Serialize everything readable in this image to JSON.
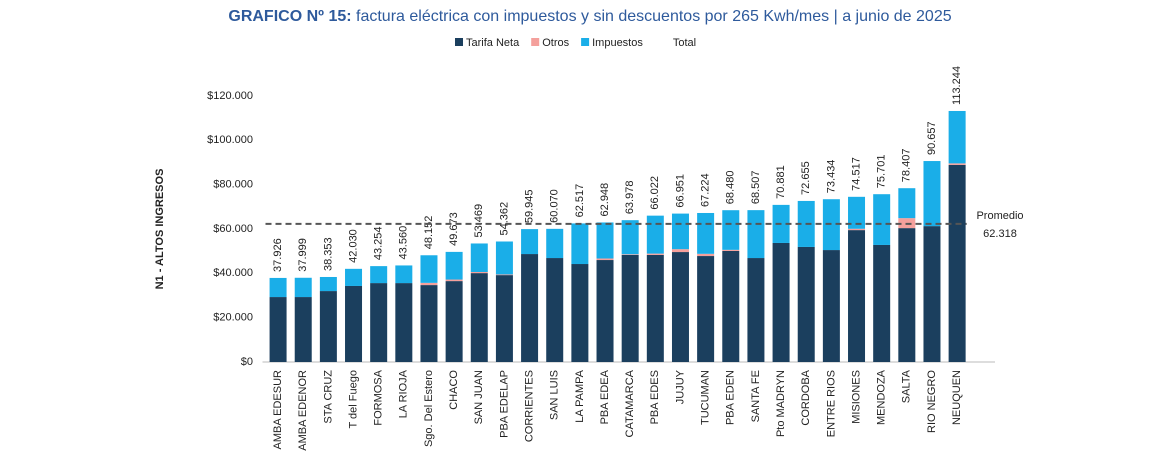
{
  "chart_data": {
    "type": "stacked_bar",
    "title_bold": "GRAFICO Nº 15:",
    "title": "factura eléctrica con impuestos y sin descuentos por 265 Kwh/mes | a junio de 2025",
    "y_label": "N1 - ALTOS INGRESOS",
    "categories": [
      "AMBA EDESUR",
      "AMBA EDENOR",
      "STA CRUZ",
      "T del Fuego",
      "FORMOSA",
      "LA RIOJA",
      "Sgo. Del Estero",
      "CHACO",
      "SAN JUAN",
      "PBA EDELAP",
      "CORRIENTES",
      "SAN LUIS",
      "LA PAMPA",
      "PBA EDEA",
      "CATAMARCA",
      "PBA EDES",
      "JUJUY",
      "TUCUMAN",
      "PBA EDEN",
      "SANTA FE",
      "Pto MADRYN",
      "CORDOBA",
      "ENTRE RIOS",
      "MISIONES",
      "MENDOZA",
      "SALTA",
      "RIO NEGRO",
      "NEUQUEN"
    ],
    "series": [
      {
        "name": "Tarifa Neta",
        "color": "#1b3f5e",
        "values": [
          29300,
          29300,
          32000,
          34300,
          35600,
          35600,
          34700,
          36500,
          40100,
          39200,
          48700,
          46900,
          44200,
          46000,
          48300,
          48300,
          49600,
          47800,
          50100,
          46900,
          53700,
          51900,
          50500,
          59500,
          52800,
          60400,
          61300,
          88900
        ]
      },
      {
        "name": "Otros",
        "color": "#f4a09c",
        "values": [
          0,
          0,
          0,
          0,
          0,
          0,
          1000,
          700,
          500,
          300,
          0,
          0,
          0,
          700,
          300,
          600,
          1300,
          1000,
          500,
          0,
          0,
          0,
          0,
          600,
          0,
          4500,
          0,
          700
        ]
      },
      {
        "name": "Impuestos",
        "color": "#1aaee8",
        "values": [
          8626,
          8699,
          6353,
          7730,
          7654,
          7960,
          12452,
          12473,
          12869,
          14862,
          11245,
          13170,
          18317,
          16248,
          15378,
          17122,
          16051,
          18424,
          17880,
          21607,
          17181,
          20755,
          22934,
          14417,
          22901,
          13507,
          29357,
          23644
        ]
      },
      {
        "name": "Total",
        "values": [
          37926,
          37999,
          38353,
          42030,
          43254,
          43560,
          48152,
          49673,
          53469,
          54362,
          59945,
          60070,
          62517,
          62948,
          63978,
          66022,
          66951,
          67224,
          68480,
          68507,
          70881,
          72655,
          73434,
          74517,
          75701,
          78407,
          90657,
          113244
        ],
        "value_labels": [
          "37.926",
          "37.999",
          "38.353",
          "42.030",
          "43.254",
          "43.560",
          "48.152",
          "49.673",
          "53.469",
          "54.362",
          "59.945",
          "60.070",
          "62.517",
          "62.948",
          "63.978",
          "66.022",
          "66.951",
          "67.224",
          "68.480",
          "68.507",
          "70.881",
          "72.655",
          "73.434",
          "74.517",
          "75.701",
          "78.407",
          "90.657",
          "113.244"
        ]
      }
    ],
    "ylim": [
      0,
      120000
    ],
    "yticks": [
      {
        "value": 0,
        "label": "$0"
      },
      {
        "value": 20000,
        "label": "$20.000"
      },
      {
        "value": 40000,
        "label": "$40.000"
      },
      {
        "value": 60000,
        "label": "$60.000"
      },
      {
        "value": 80000,
        "label": "$80.000"
      },
      {
        "value": 100000,
        "label": "$100.000"
      },
      {
        "value": 120000,
        "label": "$120.000"
      }
    ],
    "average": {
      "label": "Promedio",
      "value": 62318,
      "value_label": "62.318"
    }
  }
}
